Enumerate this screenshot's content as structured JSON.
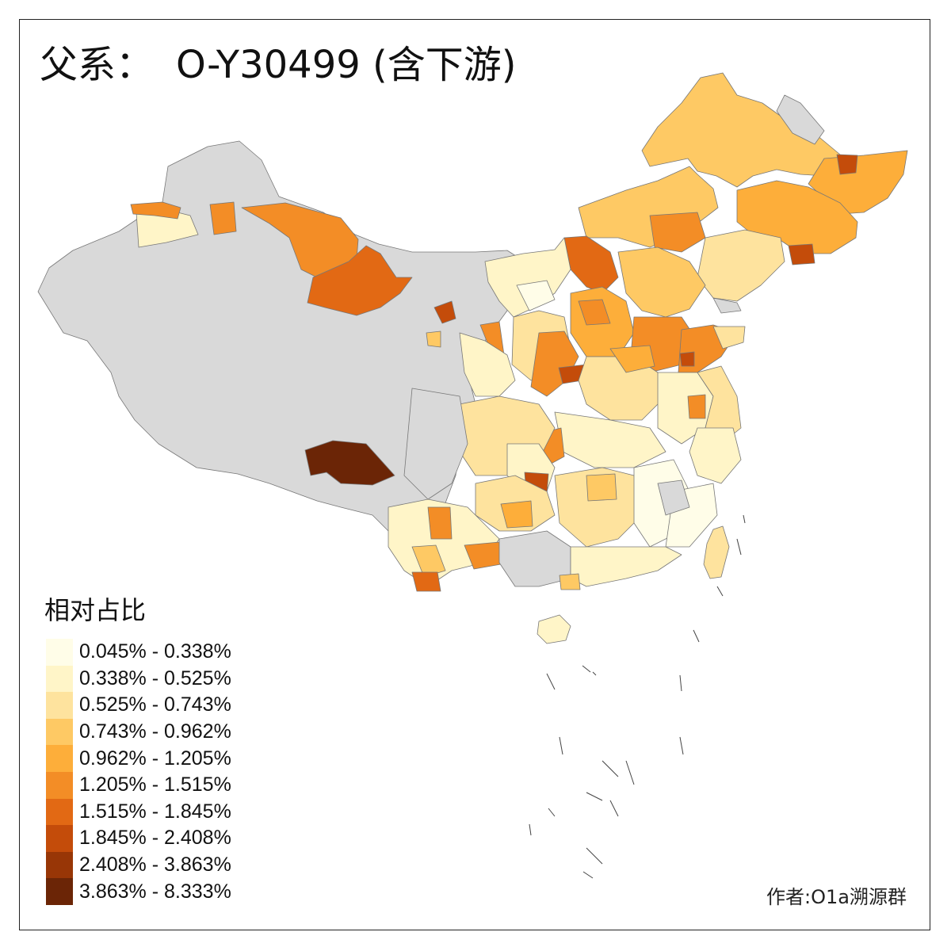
{
  "title": {
    "prefix": "父系：",
    "main": "O-Y30499 (含下游)"
  },
  "legend": {
    "title": "相对占比",
    "items": [
      {
        "label": "0.045% - 0.338%",
        "color": "#fffde8"
      },
      {
        "label": "0.338% - 0.525%",
        "color": "#fff5c8"
      },
      {
        "label": "0.525% - 0.743%",
        "color": "#fee39e"
      },
      {
        "label": "0.743% - 0.962%",
        "color": "#fec964"
      },
      {
        "label": "0.962% - 1.205%",
        "color": "#fdae3a"
      },
      {
        "label": "1.205% - 1.515%",
        "color": "#f38d26"
      },
      {
        "label": "1.515% - 1.845%",
        "color": "#e26914"
      },
      {
        "label": "1.845% - 2.408%",
        "color": "#c44c0a"
      },
      {
        "label": "2.408% - 3.863%",
        "color": "#983606"
      },
      {
        "label": "3.863% - 8.333%",
        "color": "#6b2506"
      }
    ]
  },
  "no_data_color": "#d9d9d9",
  "credit": "作者:O1a溯源群"
}
